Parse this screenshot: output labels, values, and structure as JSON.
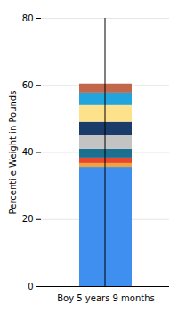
{
  "chart_data": {
    "type": "bar",
    "stacked": true,
    "grid": true,
    "ylabel": "Percentile Weight in Pounds",
    "categories": [
      "Boy 5 years 9 months"
    ],
    "ylim": [
      0,
      80
    ],
    "yticks": [
      0,
      20,
      40,
      60,
      80
    ],
    "series": [
      {
        "color": "#3f8ff0",
        "values": [
          35.6
        ]
      },
      {
        "color": "#f2a23a",
        "values": [
          1.1
        ]
      },
      {
        "color": "#e6472e",
        "values": [
          1.6
        ]
      },
      {
        "color": "#1c6f8f",
        "values": [
          2.7
        ]
      },
      {
        "color": "#c3c3c3",
        "values": [
          4
        ]
      },
      {
        "color": "#1b3b6a",
        "values": [
          4
        ]
      },
      {
        "color": "#fde28b",
        "values": [
          5
        ]
      },
      {
        "color": "#22a5dd",
        "values": [
          3.7
        ]
      },
      {
        "color": "#c1684c",
        "values": [
          2.7
        ]
      }
    ]
  }
}
